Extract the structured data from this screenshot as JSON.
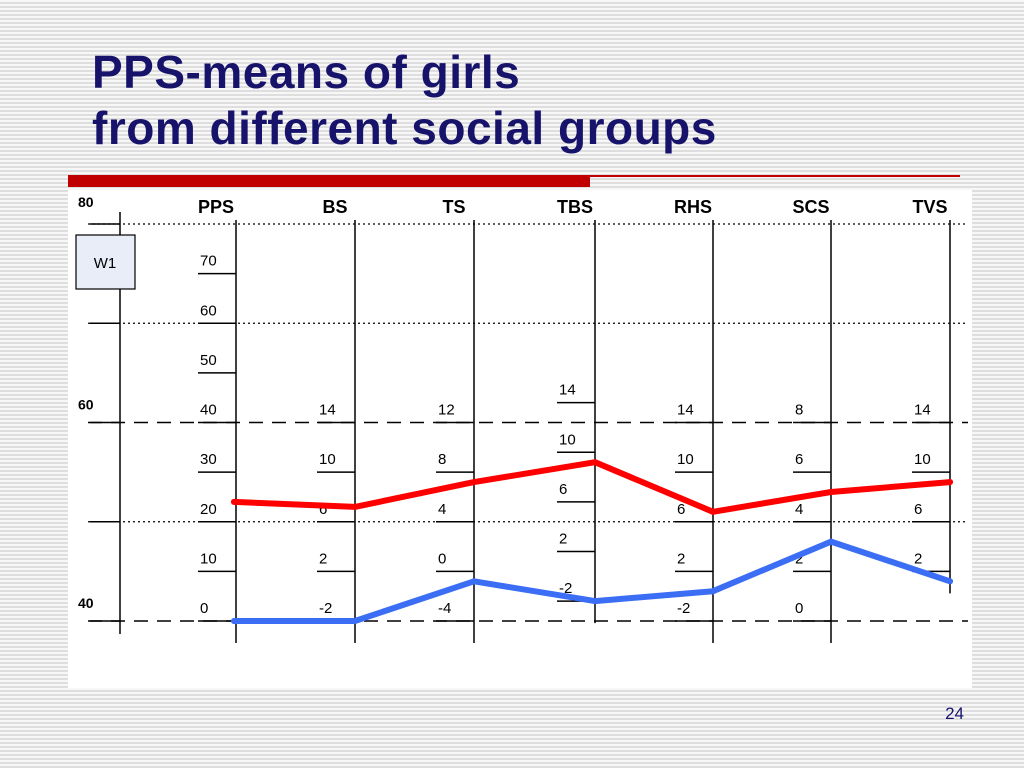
{
  "slide": {
    "title_line1": "PPS-means of girls",
    "title_line2": "from different social groups",
    "slide_number": "24"
  },
  "chart_data": {
    "type": "line",
    "title": "PPS-means of girls from different social groups",
    "categories": [
      "PPS",
      "BS",
      "TS",
      "TBS",
      "RHS",
      "SCS",
      "TVS"
    ],
    "reference_scale": {
      "ticks": [
        "80",
        "60",
        "40"
      ],
      "range": [
        35,
        80
      ]
    },
    "box_label": "W1",
    "axes": [
      {
        "label": "PPS",
        "ticks": [
          "70",
          "60",
          "50",
          "40",
          "30",
          "20",
          "10",
          "0"
        ]
      },
      {
        "label": "BS",
        "ticks": [
          "14",
          "10",
          "6",
          "2",
          "-2"
        ]
      },
      {
        "label": "TS",
        "ticks": [
          "12",
          "8",
          "4",
          "0",
          "-4"
        ]
      },
      {
        "label": "TBS",
        "ticks": [
          "14",
          "10",
          "6",
          "2",
          "-2"
        ]
      },
      {
        "label": "RHS",
        "ticks": [
          "14",
          "10",
          "6",
          "2",
          "-2"
        ]
      },
      {
        "label": "SCS",
        "ticks": [
          "8",
          "6",
          "4",
          "2",
          "0"
        ]
      },
      {
        "label": "TVS",
        "ticks": [
          "14",
          "10",
          "6",
          "2"
        ]
      }
    ],
    "series": [
      {
        "color": "#ff0000",
        "t_values": [
          52,
          51.5,
          54,
          56,
          51,
          53,
          54
        ]
      },
      {
        "color": "#3b6ef5",
        "t_values": [
          40,
          40,
          44,
          42,
          43,
          48,
          44
        ]
      }
    ],
    "grid": true
  }
}
